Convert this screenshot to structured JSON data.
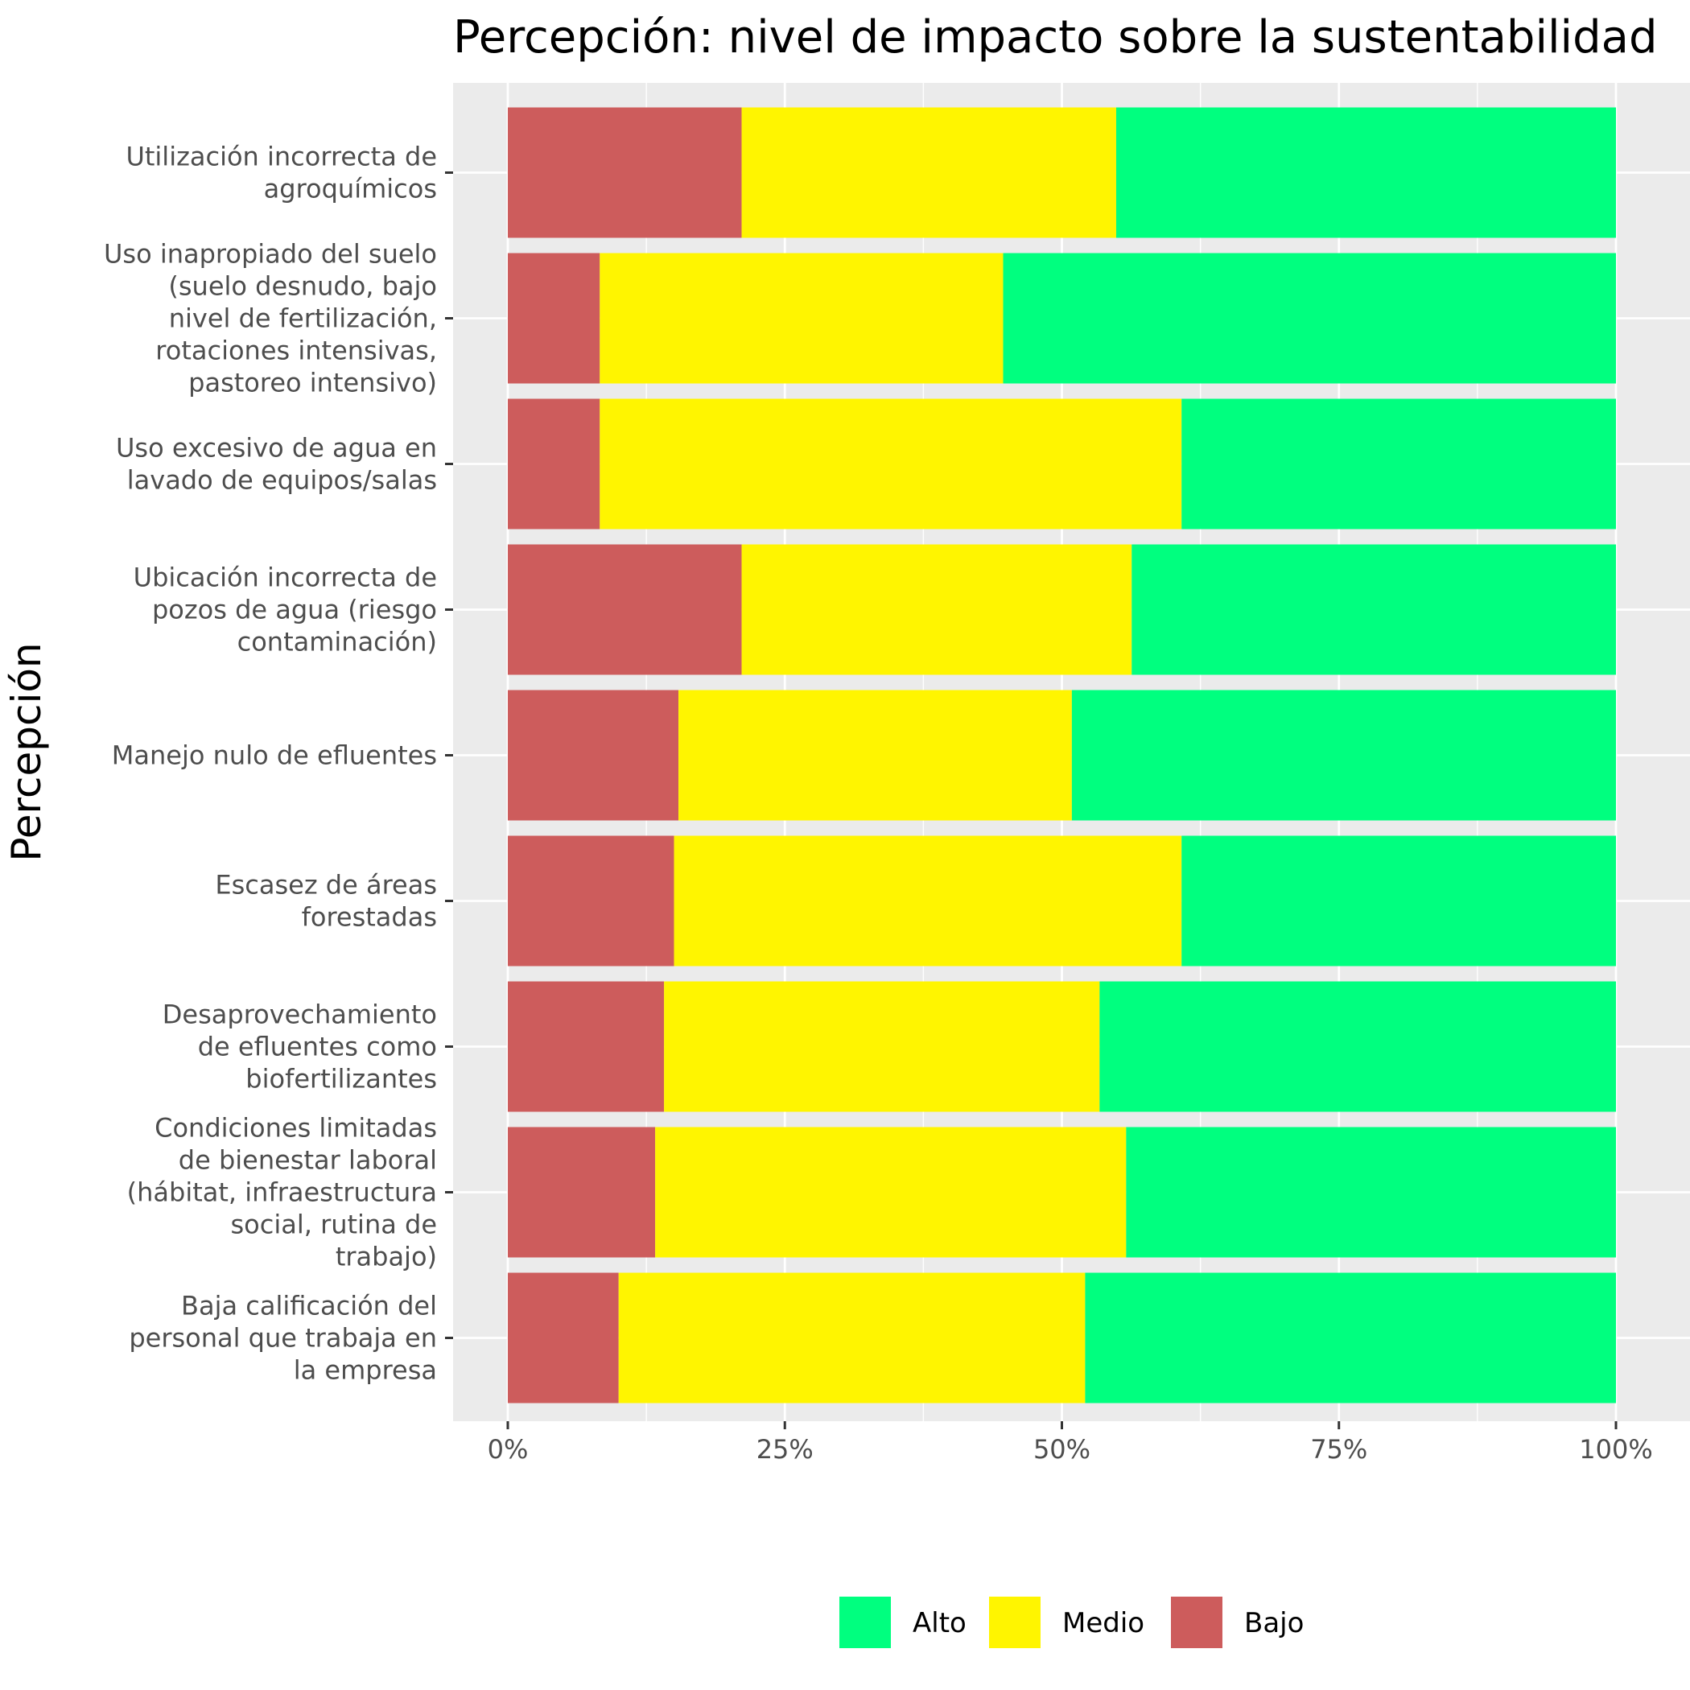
{
  "chart_data": {
    "type": "bar",
    "orientation": "horizontal",
    "stacked": true,
    "title": "Percepción: nivel de impacto sobre la sustentabilidad",
    "xlabel": "",
    "ylabel": "Percepción",
    "xlim": [
      0,
      100
    ],
    "x_ticks": [
      "0%",
      "25%",
      "50%",
      "75%",
      "100%"
    ],
    "grid": true,
    "legend_position": "bottom",
    "categories": [
      [
        "Utilización incorrecta de",
        "agroquímicos"
      ],
      [
        "Uso inapropiado del suelo",
        "(suelo desnudo, bajo",
        "nivel de fertilización,",
        "rotaciones intensivas,",
        "pastoreo intensivo)"
      ],
      [
        "Uso excesivo de agua en",
        "lavado de equipos/salas"
      ],
      [
        "Ubicación incorrecta de",
        "pozos de agua (riesgo",
        "contaminación)"
      ],
      [
        "Manejo nulo de efluentes"
      ],
      [
        "Escasez de áreas",
        "forestadas"
      ],
      [
        "Desaprovechamiento",
        "de efluentes como",
        "biofertilizantes"
      ],
      [
        "Condiciones limitadas",
        "de bienestar laboral",
        "(hábitat, infraestructura",
        "social, rutina de",
        "trabajo)"
      ],
      [
        "Baja calificación del",
        "personal que trabaja en",
        "la empresa"
      ]
    ],
    "series": [
      {
        "name": "Bajo",
        "color": "#CD5C5C",
        "values": [
          21.1,
          8.3,
          8.3,
          21.1,
          15.4,
          15.0,
          14.1,
          13.3,
          10.0
        ]
      },
      {
        "name": "Medio",
        "color": "#FFF500",
        "values": [
          33.8,
          36.4,
          52.5,
          35.2,
          35.5,
          45.8,
          39.3,
          42.5,
          42.1
        ]
      },
      {
        "name": "Alto",
        "color": "#00FF7F",
        "values": [
          45.1,
          55.3,
          39.2,
          43.7,
          49.1,
          39.2,
          46.6,
          44.2,
          47.9
        ]
      }
    ],
    "legend_order": [
      "Alto",
      "Medio",
      "Bajo"
    ]
  }
}
